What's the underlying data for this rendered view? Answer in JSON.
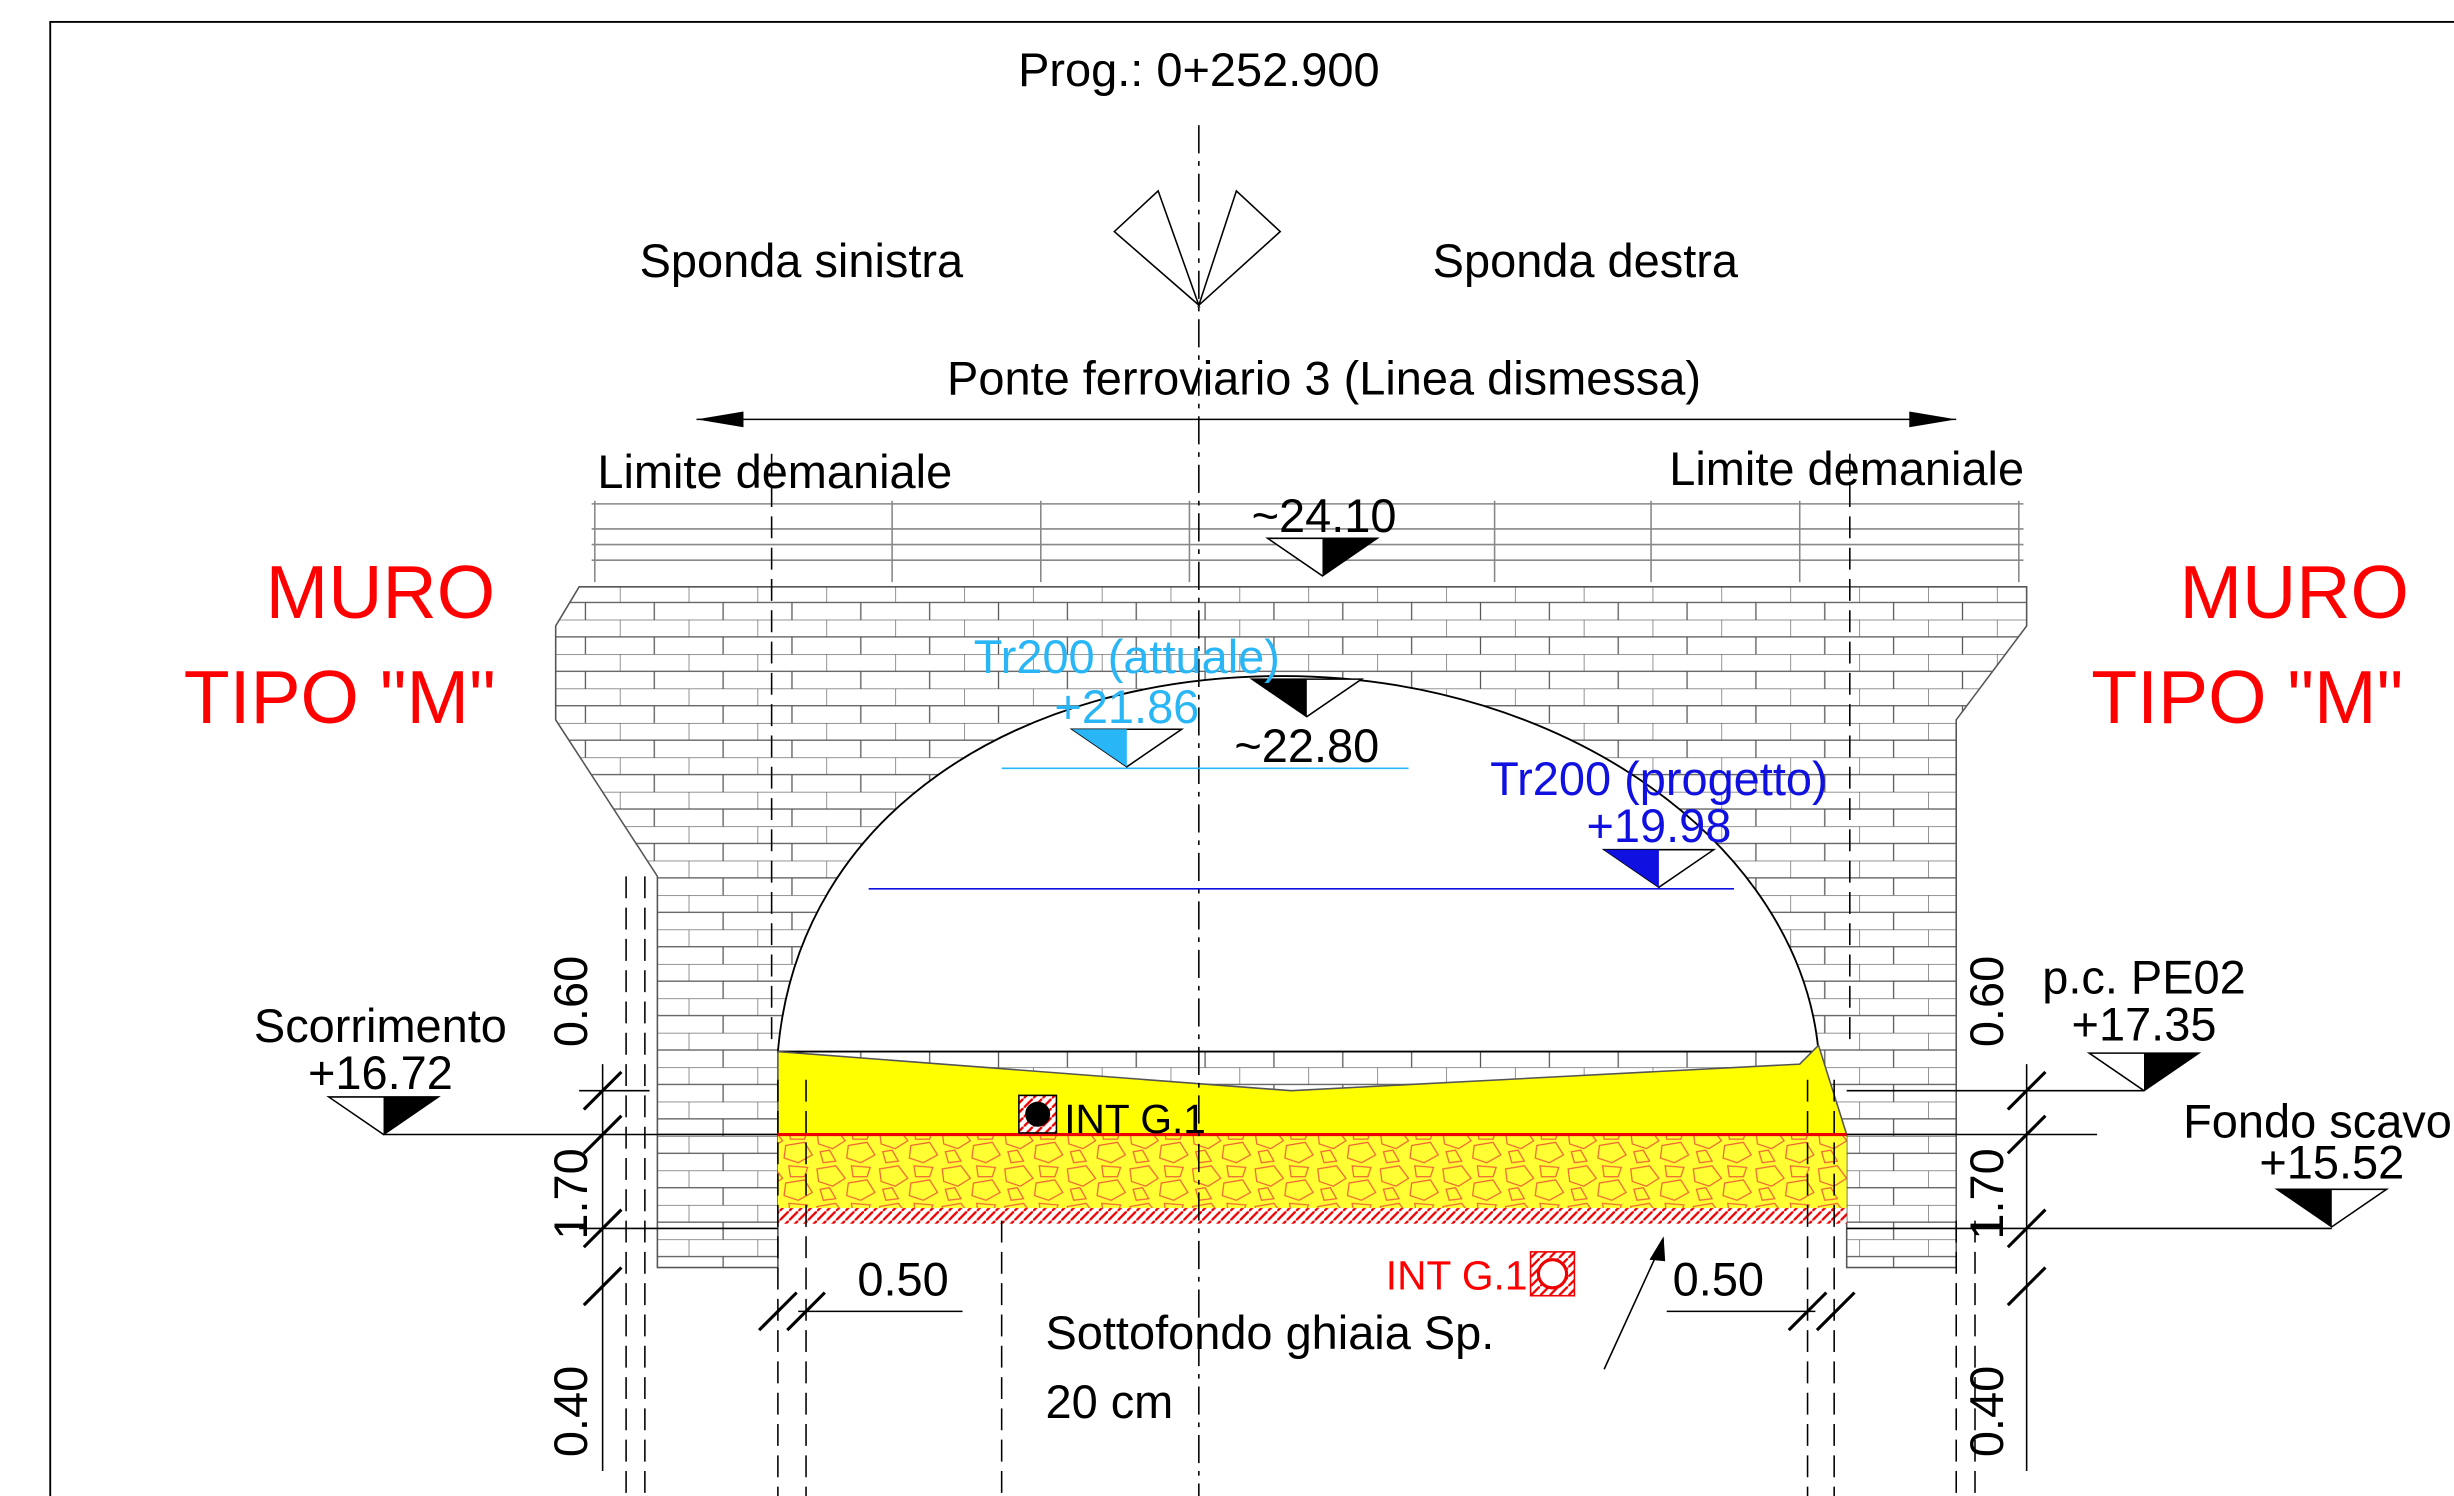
{
  "header": {
    "title": "Prog.: 0+252.900"
  },
  "banks": {
    "left": "Sponda sinistra",
    "right": "Sponda destra"
  },
  "bridge": {
    "name": "Ponte ferroviario 3 (Linea dismessa)",
    "limit_left": "Limite demaniale",
    "limit_right": "Limite demaniale",
    "deck": "~24.10",
    "intrados": "~22.80"
  },
  "walls": {
    "left": [
      "MURO",
      "TIPO \"M\""
    ],
    "right": [
      "MURO",
      "TIPO \"M\""
    ]
  },
  "levels": {
    "tr200_current": {
      "label": "Tr200 (attuale)",
      "value": "+21.86"
    },
    "tr200_project": {
      "label": "Tr200 (progetto)",
      "value": "+19.98"
    },
    "scorrimento": {
      "label": "Scorrimento",
      "value": "+16.72"
    },
    "ground": {
      "label": "p.c. PE02",
      "value": "+17.35"
    },
    "excavation": {
      "label": "Fondo scavo",
      "value": "+15.52"
    }
  },
  "markers": [
    "INT G.1",
    "INT G.1"
  ],
  "dimensions": {
    "left": [
      "0.60",
      "1.70",
      "0.40"
    ],
    "right": [
      "0.60",
      "1.70",
      "0.40"
    ],
    "offset_left": "0.50",
    "offset_right": "0.50"
  },
  "notes": {
    "gravel": [
      "Sottofondo ghiaia Sp.",
      "20 cm"
    ]
  }
}
